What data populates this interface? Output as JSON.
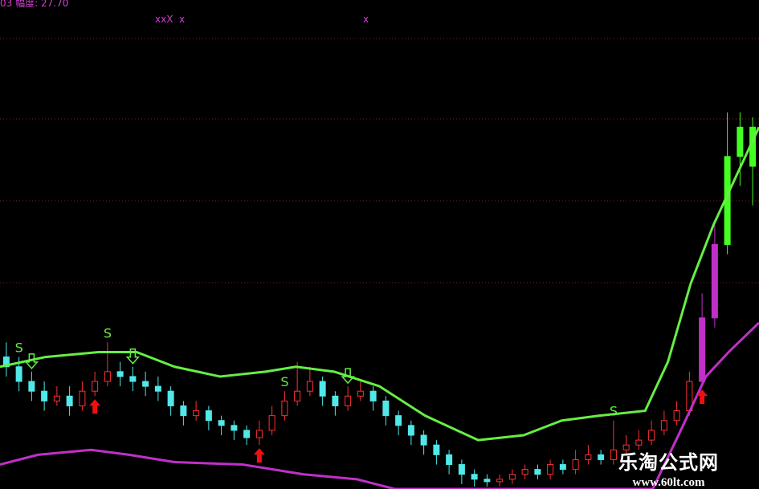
{
  "header": {
    "code": "03",
    "label": "幅度:",
    "value": "27.70",
    "marks_left": "xxX  x",
    "marks_right": "x"
  },
  "watermark": {
    "name": "乐淘公式网",
    "url": "www.60lt.com"
  },
  "colors": {
    "background": "#000000",
    "upper_line": "#66ee44",
    "lower_line": "#c030c8",
    "up_candle": "#ff3030",
    "down_candle": "#50e8e8",
    "rally_candle": "#44ff22",
    "grid": "#882020",
    "signal_s": "#66ee44",
    "buy_arrow": "#ee1010"
  },
  "chart_data": {
    "type": "candlestick",
    "title": "",
    "xlabel": "",
    "ylabel": "",
    "ylim": [
      0,
      100
    ],
    "grid": true,
    "candles": [
      [
        27,
        25,
        30,
        23
      ],
      [
        25,
        22,
        27,
        20
      ],
      [
        22,
        20,
        24,
        18
      ],
      [
        20,
        18,
        22,
        16
      ],
      [
        18,
        19,
        21,
        17
      ],
      [
        19,
        17,
        21,
        15
      ],
      [
        17,
        20,
        22,
        16
      ],
      [
        20,
        22,
        24,
        19
      ],
      [
        22,
        24,
        30,
        21
      ],
      [
        24,
        23,
        26,
        21
      ],
      [
        23,
        22,
        25,
        20
      ],
      [
        22,
        21,
        24,
        19
      ],
      [
        21,
        20,
        23,
        18
      ],
      [
        20,
        17,
        21,
        15
      ],
      [
        17,
        15,
        18,
        13
      ],
      [
        15,
        16,
        18,
        14
      ],
      [
        16,
        14,
        17,
        12
      ],
      [
        14,
        13,
        15,
        11
      ],
      [
        13,
        12,
        14,
        10
      ],
      [
        12,
        10.5,
        13,
        9
      ],
      [
        10.5,
        12,
        14,
        9
      ],
      [
        12,
        15,
        17,
        11
      ],
      [
        15,
        18,
        20,
        14
      ],
      [
        18,
        20,
        26,
        17
      ],
      [
        20,
        22,
        25,
        19
      ],
      [
        22,
        19,
        23,
        17
      ],
      [
        19,
        17,
        20,
        15
      ],
      [
        17,
        19,
        21,
        16
      ],
      [
        19,
        20,
        22,
        18
      ],
      [
        20,
        18,
        21,
        16
      ],
      [
        18,
        15,
        19,
        13
      ],
      [
        15,
        13,
        16,
        11
      ],
      [
        13,
        11,
        14,
        9
      ],
      [
        11,
        9,
        12,
        7
      ],
      [
        9,
        7,
        10,
        5
      ],
      [
        7,
        5,
        8,
        3
      ],
      [
        5,
        3,
        6,
        1
      ],
      [
        3,
        2,
        4,
        0.5
      ],
      [
        2,
        1.5,
        3,
        0.5
      ],
      [
        1.5,
        2,
        3,
        0.5
      ],
      [
        2,
        3,
        4,
        1
      ],
      [
        3,
        4,
        5,
        2
      ],
      [
        4,
        3,
        5,
        2
      ],
      [
        3,
        5,
        6,
        2
      ],
      [
        5,
        4,
        6,
        3
      ],
      [
        4,
        6,
        8,
        3
      ],
      [
        6,
        7,
        9,
        5
      ],
      [
        7,
        6,
        8,
        5
      ],
      [
        6,
        8,
        14,
        5
      ],
      [
        8,
        9,
        11,
        7
      ],
      [
        9,
        10,
        12,
        8
      ],
      [
        10,
        12,
        14,
        9
      ],
      [
        12,
        14,
        16,
        11
      ],
      [
        14,
        16,
        18,
        13
      ],
      [
        16,
        22,
        24,
        15
      ],
      [
        22,
        35,
        40,
        21
      ],
      [
        35,
        50,
        54,
        33
      ],
      [
        50,
        68,
        77,
        48
      ],
      [
        68,
        74,
        77,
        62
      ],
      [
        74,
        66,
        76,
        58
      ]
    ],
    "rally_from_index": 57,
    "upper_line": {
      "x": [
        0,
        6,
        13,
        18,
        23,
        29,
        35,
        39,
        44,
        50,
        56,
        63,
        69,
        74,
        79,
        85,
        88,
        91,
        94,
        97,
        100
      ],
      "y": [
        25,
        27,
        28,
        28,
        25,
        23,
        24,
        25,
        24,
        21,
        15,
        10,
        11,
        14,
        15,
        16,
        26,
        42,
        54,
        64,
        74
      ]
    },
    "lower_line": {
      "x": [
        0,
        5,
        12,
        17,
        23,
        32,
        40,
        47,
        52,
        86,
        90,
        93,
        96,
        100
      ],
      "y": [
        5,
        7,
        8,
        7,
        5.5,
        5,
        3,
        2,
        0,
        0,
        13,
        23,
        28,
        34
      ]
    },
    "signals": [
      {
        "type": "S",
        "index": 1
      },
      {
        "type": "S",
        "index": 8
      },
      {
        "type": "S",
        "index": 22
      },
      {
        "type": "S",
        "index": 48
      },
      {
        "type": "sell-arrow",
        "index": 2
      },
      {
        "type": "sell-arrow",
        "index": 10
      },
      {
        "type": "sell-arrow",
        "index": 27
      },
      {
        "type": "buy-arrow",
        "index": 7
      },
      {
        "type": "buy-arrow",
        "index": 20
      },
      {
        "type": "buy-arrow",
        "index": 55
      }
    ]
  }
}
